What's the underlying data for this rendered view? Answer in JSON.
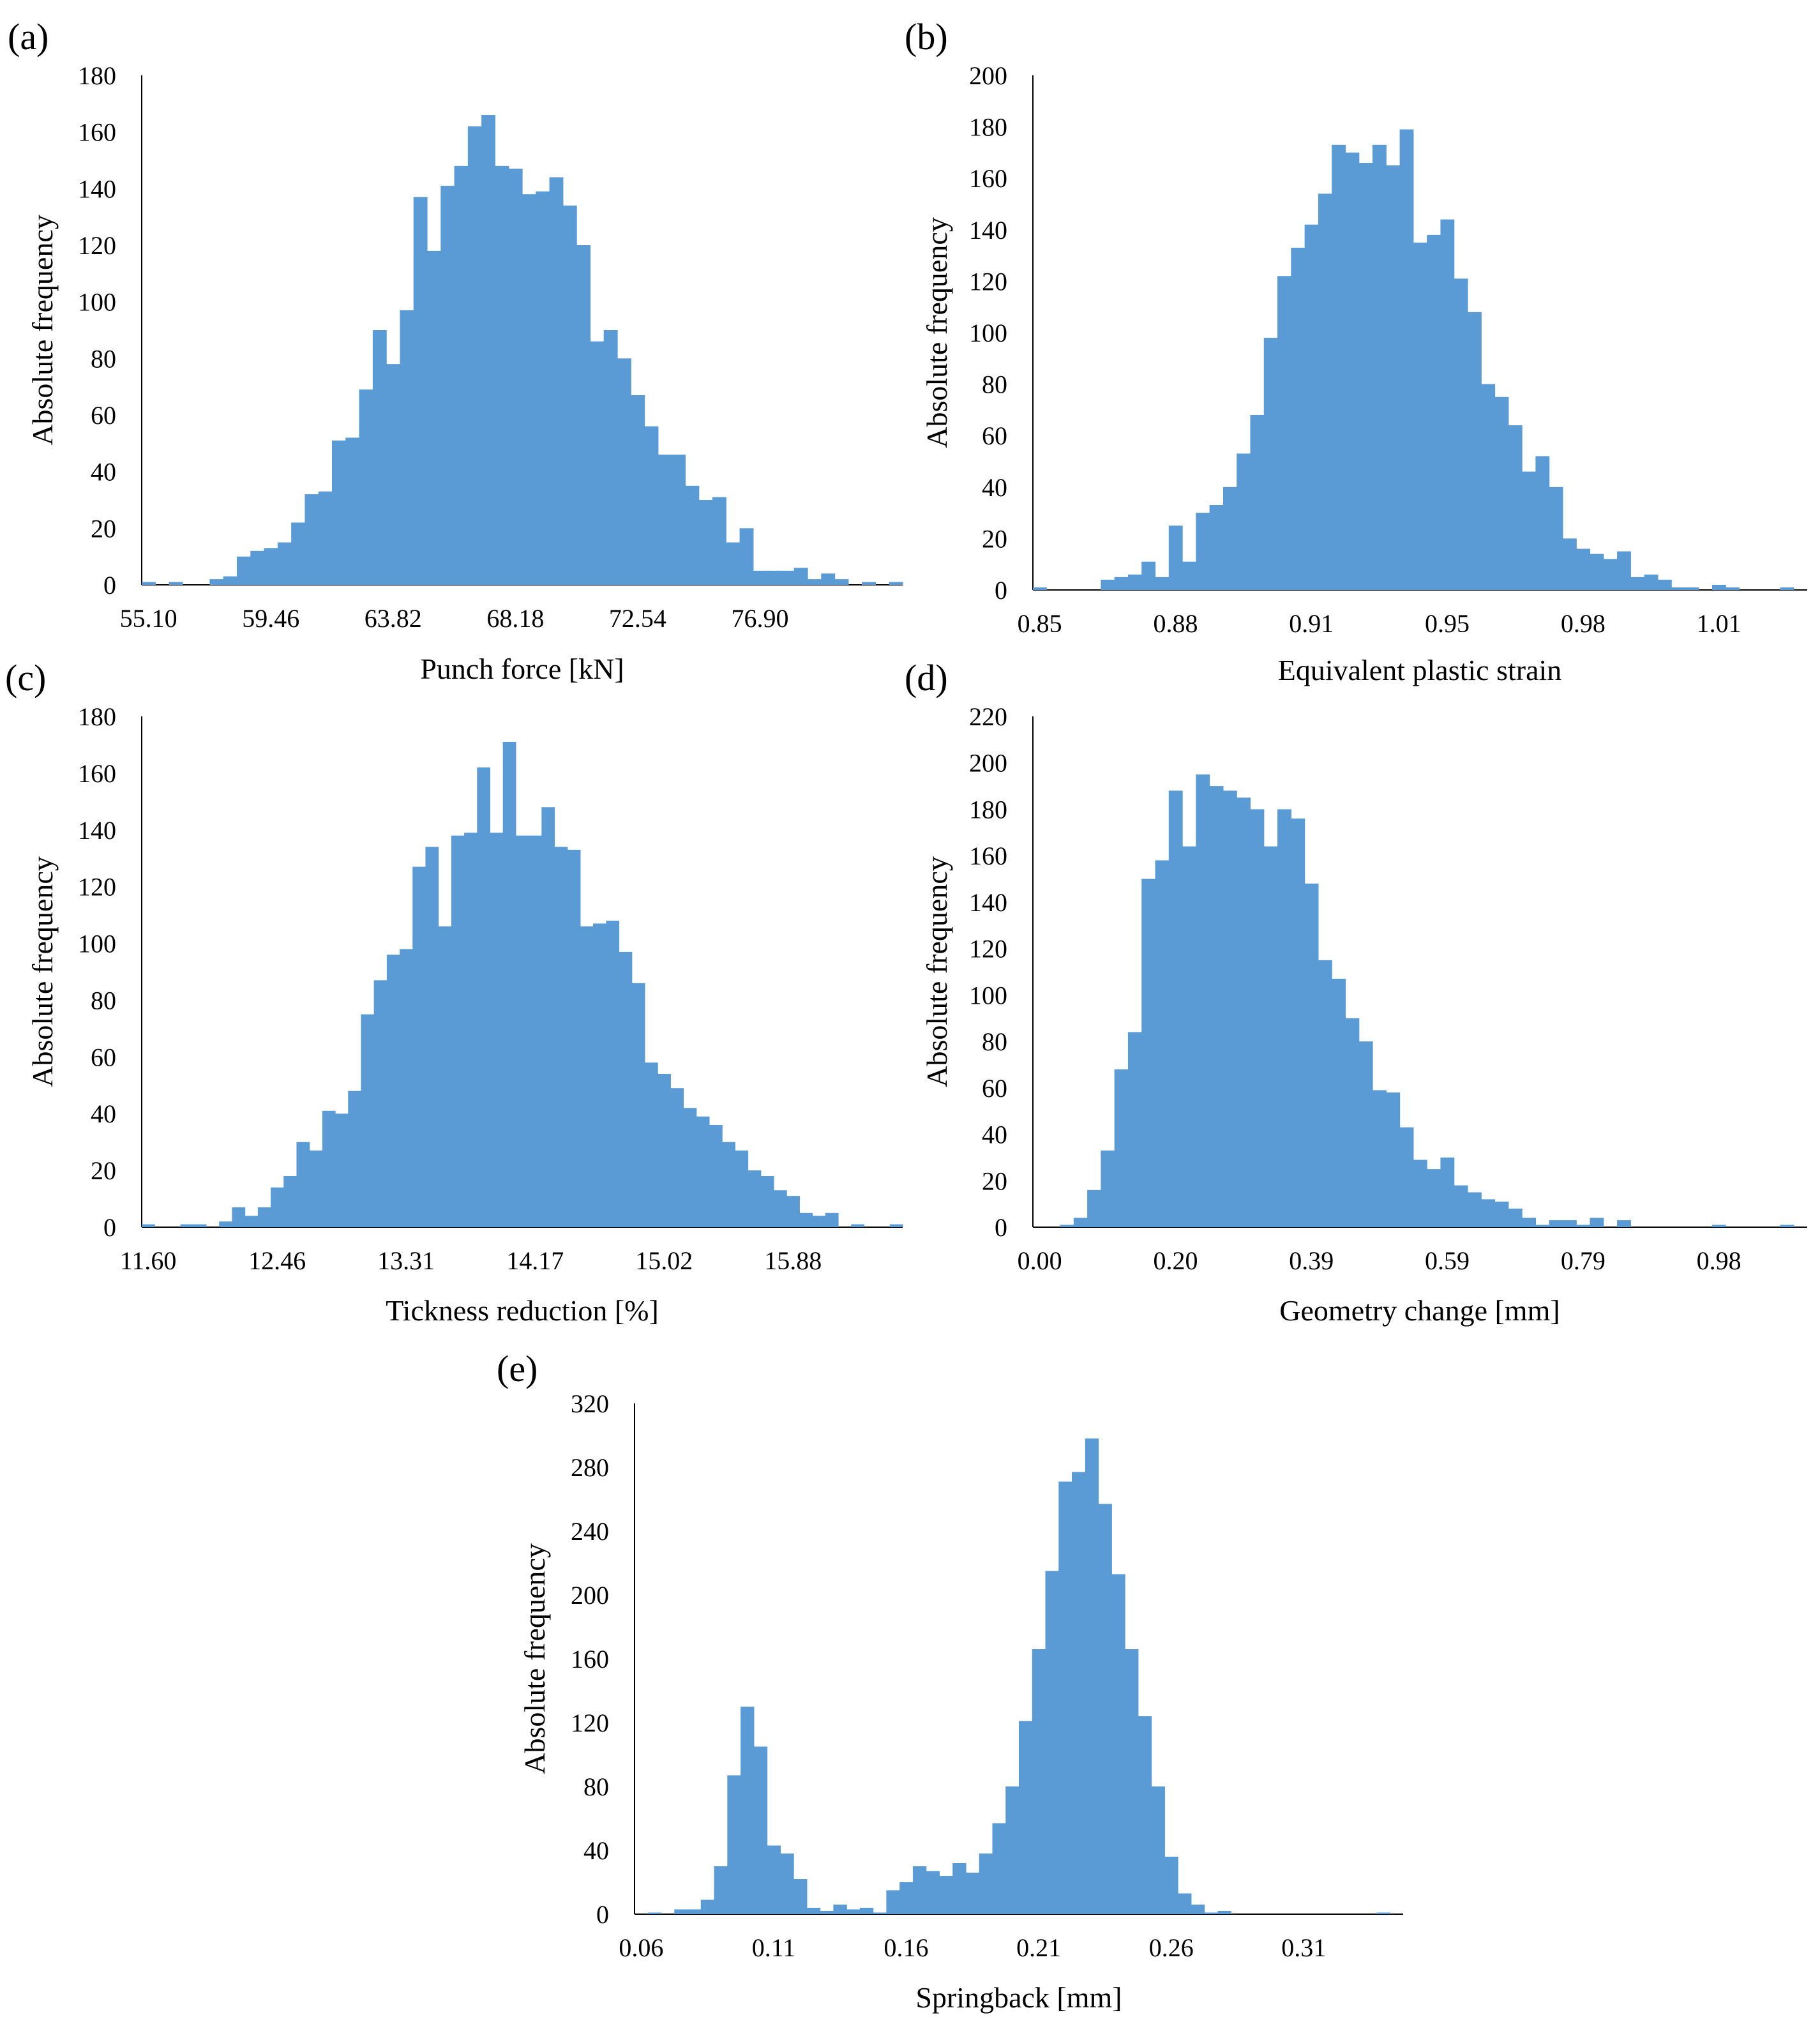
{
  "chart_data": [
    {
      "type": "bar",
      "panel_label": "(a)",
      "xlabel": "Punch force [kN]",
      "ylabel": "Absolute frequency",
      "ylim": [
        0,
        180
      ],
      "yticks": [
        "0",
        "20",
        "40",
        "60",
        "80",
        "100",
        "120",
        "140",
        "160",
        "180"
      ],
      "xtick_labels": [
        "55.10",
        "59.46",
        "63.82",
        "68.18",
        "72.54",
        "76.90"
      ],
      "xtick_bins": [
        0,
        9,
        18,
        27,
        36,
        45
      ],
      "values": [
        1,
        0,
        1,
        0,
        0,
        2,
        3,
        10,
        12,
        13,
        15,
        22,
        32,
        33,
        51,
        52,
        69,
        90,
        78,
        97,
        137,
        118,
        141,
        148,
        162,
        166,
        148,
        147,
        138,
        139,
        144,
        134,
        120,
        86,
        90,
        80,
        67,
        56,
        46,
        46,
        35,
        30,
        31,
        15,
        20,
        5,
        5,
        5,
        6,
        2,
        4,
        2,
        0,
        1,
        0,
        1
      ]
    },
    {
      "type": "bar",
      "panel_label": "(b)",
      "xlabel": "Equivalent plastic strain",
      "ylabel": "Absolute frequency",
      "ylim": [
        0,
        200
      ],
      "yticks": [
        "0",
        "20",
        "40",
        "60",
        "80",
        "100",
        "120",
        "140",
        "160",
        "180",
        "200"
      ],
      "xtick_labels": [
        "0.85",
        "0.88",
        "0.91",
        "0.95",
        "0.98",
        "1.01"
      ],
      "xtick_bins": [
        0,
        10,
        20,
        30,
        40,
        50
      ],
      "values": [
        1,
        0,
        0,
        0,
        0,
        4,
        5,
        6,
        11,
        5,
        25,
        11,
        30,
        33,
        40,
        53,
        68,
        98,
        122,
        133,
        142,
        154,
        173,
        170,
        166,
        173,
        165,
        179,
        135,
        138,
        144,
        121,
        108,
        80,
        75,
        64,
        46,
        52,
        40,
        20,
        16,
        14,
        12,
        15,
        5,
        6,
        4,
        1,
        1,
        0,
        2,
        1,
        0,
        0,
        0,
        1,
        0
      ]
    },
    {
      "type": "bar",
      "panel_label": "(c)",
      "xlabel": "Tickness reduction [%]",
      "ylabel": "Absolute frequency",
      "ylim": [
        0,
        180
      ],
      "yticks": [
        "0",
        "20",
        "40",
        "60",
        "80",
        "100",
        "120",
        "140",
        "160",
        "180"
      ],
      "xtick_labels": [
        "11.60",
        "12.46",
        "13.31",
        "14.17",
        "15.02",
        "15.88"
      ],
      "xtick_bins": [
        0,
        10,
        20,
        30,
        40,
        50
      ],
      "values": [
        1,
        0,
        0,
        1,
        1,
        0,
        2,
        7,
        4,
        7,
        14,
        18,
        30,
        27,
        41,
        40,
        48,
        75,
        87,
        96,
        98,
        127,
        134,
        106,
        138,
        139,
        162,
        139,
        171,
        138,
        138,
        148,
        134,
        133,
        106,
        107,
        108,
        97,
        86,
        58,
        54,
        49,
        42,
        39,
        36,
        30,
        27,
        20,
        18,
        13,
        11,
        5,
        4,
        5,
        0,
        1,
        0,
        0,
        1
      ]
    },
    {
      "type": "bar",
      "panel_label": "(d)",
      "xlabel": "Geometry change [mm]",
      "ylabel": "Absolute frequency",
      "ylim": [
        0,
        220
      ],
      "yticks": [
        "0",
        "20",
        "40",
        "60",
        "80",
        "100",
        "120",
        "140",
        "160",
        "180",
        "200",
        "220"
      ],
      "xtick_labels": [
        "0.00",
        "0.20",
        "0.39",
        "0.59",
        "0.79",
        "0.98"
      ],
      "xtick_bins": [
        0,
        10,
        20,
        30,
        40,
        50
      ],
      "values": [
        0,
        0,
        1,
        4,
        16,
        33,
        68,
        84,
        150,
        158,
        188,
        164,
        195,
        190,
        188,
        185,
        180,
        164,
        180,
        176,
        148,
        115,
        107,
        90,
        80,
        59,
        58,
        43,
        29,
        25,
        30,
        18,
        15,
        12,
        11,
        8,
        4,
        1,
        3,
        3,
        1,
        4,
        0,
        3,
        0,
        0,
        0,
        0,
        0,
        0,
        1,
        0,
        0,
        0,
        0,
        1,
        0
      ]
    },
    {
      "type": "bar",
      "panel_label": "(e)",
      "xlabel": "Springback [mm]",
      "ylabel": "Absolute frequency",
      "ylim": [
        0,
        320
      ],
      "yticks": [
        "0",
        "40",
        "80",
        "120",
        "160",
        "200",
        "240",
        "280",
        "320"
      ],
      "xtick_labels": [
        "0.06",
        "0.11",
        "0.16",
        "0.21",
        "0.26",
        "0.31"
      ],
      "xtick_bins": [
        0,
        10,
        20,
        30,
        40,
        50
      ],
      "values": [
        0,
        1,
        0,
        3,
        3,
        9,
        30,
        87,
        130,
        105,
        43,
        38,
        22,
        4,
        2,
        6,
        3,
        4,
        1,
        15,
        20,
        30,
        27,
        24,
        32,
        26,
        38,
        57,
        80,
        121,
        166,
        215,
        271,
        277,
        298,
        257,
        213,
        166,
        124,
        80,
        36,
        13,
        6,
        1,
        2,
        0,
        0,
        0,
        0,
        0,
        0,
        0,
        0,
        0,
        0,
        0,
        1,
        0
      ]
    }
  ]
}
